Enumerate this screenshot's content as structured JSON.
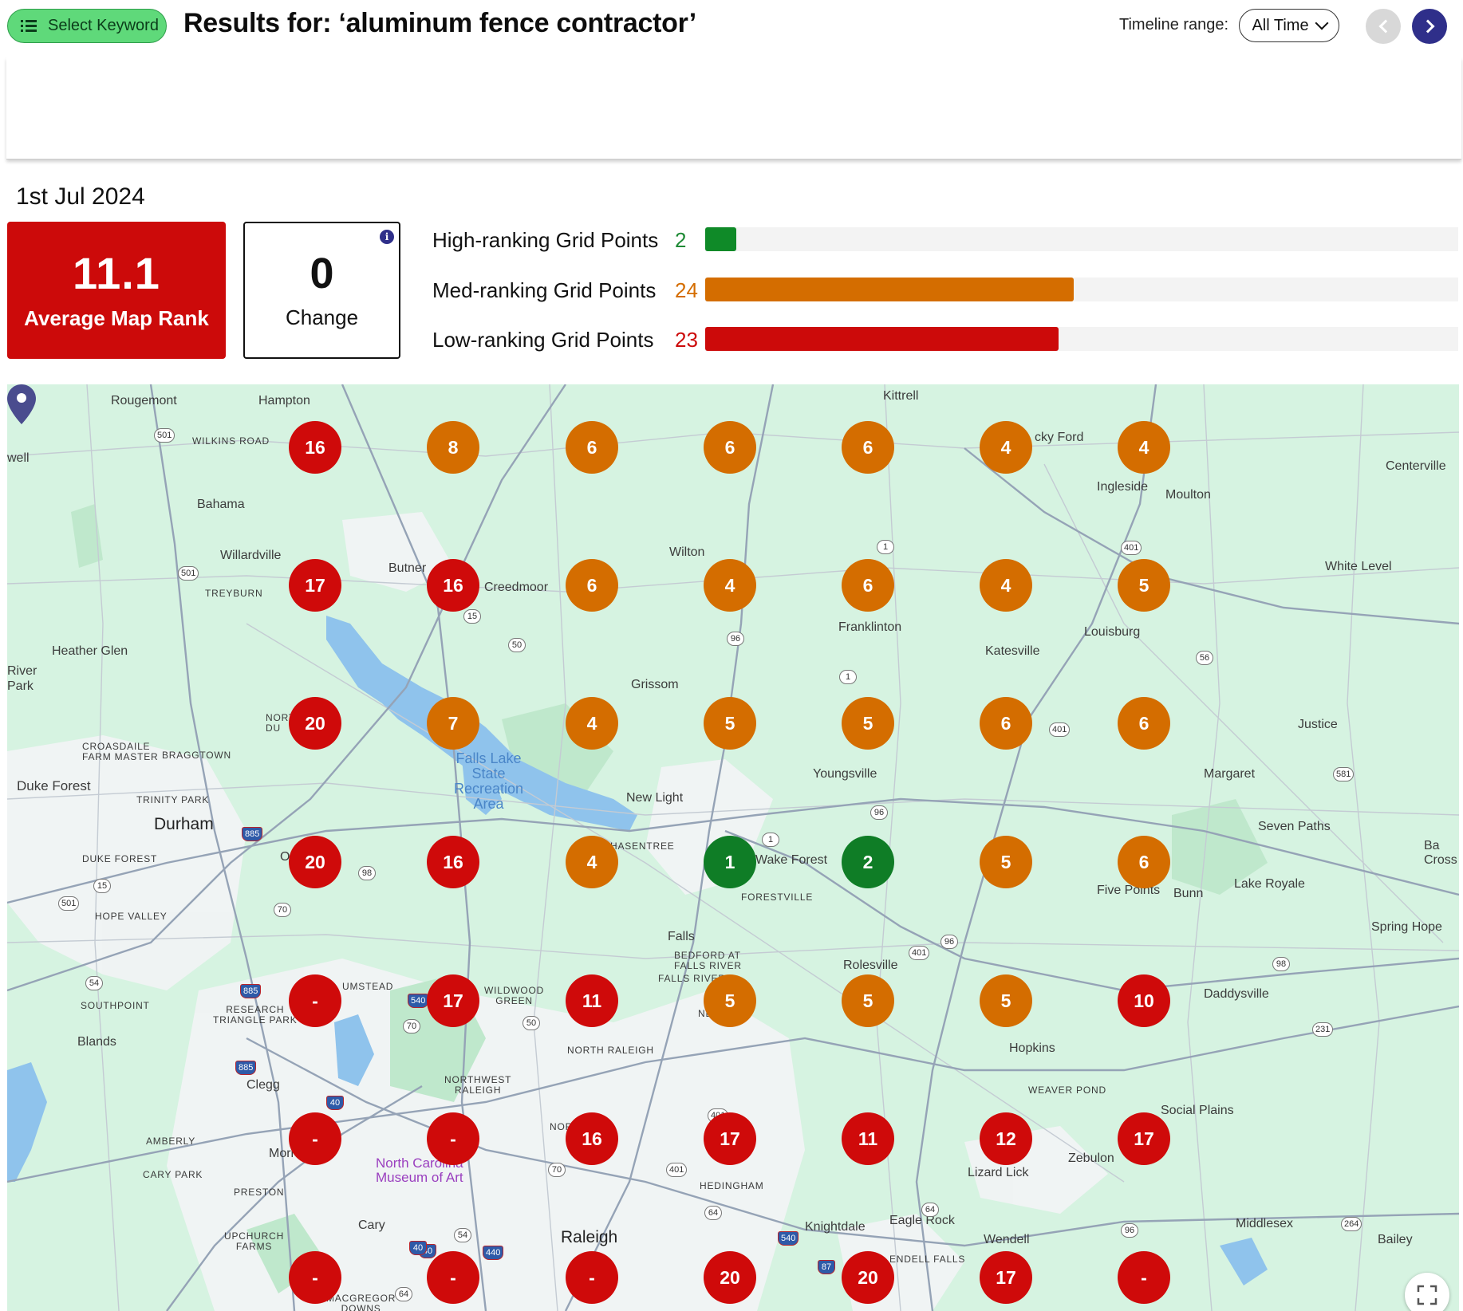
{
  "header": {
    "select_keyword_label": "Select Keyword",
    "title": "Results for: ‘aluminum fence contractor’",
    "timeline_label": "Timeline range:",
    "timeline_value": "All Time"
  },
  "summary": {
    "date": "1st Jul 2024",
    "average_rank_value": "11.1",
    "average_rank_label": "Average Map Rank",
    "change_value": "0",
    "change_label": "Change",
    "info_glyph": "i"
  },
  "ranking_bars": [
    {
      "label": "High-ranking Grid Points",
      "count": "2",
      "total": 49,
      "color": "#0f8a28"
    },
    {
      "label": "Med-ranking Grid Points",
      "count": "24",
      "total": 49,
      "color": "#d46d00"
    },
    {
      "label": "Low-ranking Grid Points",
      "count": "23",
      "total": 49,
      "color": "#cc0a0a"
    }
  ],
  "colors": {
    "red": "#cf0a0a",
    "orange": "#d46d00",
    "green": "#0f7d26",
    "accent": "#2f2f8a"
  },
  "grid": {
    "rows": [
      [
        "16",
        "8",
        "6",
        "6",
        "6",
        "4",
        "4"
      ],
      [
        "17",
        "16",
        "6",
        "4",
        "6",
        "4",
        "5"
      ],
      [
        "20",
        "7",
        "4",
        "5",
        "5",
        "6",
        "6"
      ],
      [
        "20",
        "16",
        "4",
        "1",
        "2",
        "5",
        "6"
      ],
      [
        "-",
        "17",
        "11",
        "5",
        "5",
        "5",
        "10"
      ],
      [
        "-",
        "-",
        "16",
        "17",
        "11",
        "12",
        "17"
      ],
      [
        "-",
        "-",
        "-",
        "20",
        "20",
        "17",
        "-"
      ]
    ]
  },
  "map_places": {
    "rougemont": "Rougemont",
    "hampton": "Hampton",
    "wilkins_road": "WILKINS ROAD",
    "well": "well",
    "bahama": "Bahama",
    "willardville": "Willardville",
    "treyburn": "TREYBURN",
    "butner": "Butner",
    "creedmoor": "Creedmoor",
    "heather_glen": "Heather Glen",
    "river_park": "River\nPark",
    "wilton": "Wilton",
    "kittrell": "Kittrell",
    "cky_ford": "cky Ford",
    "ingleside": "Ingleside",
    "moulton": "Moulton",
    "centerville": "Centerville",
    "white_level": "White Level",
    "franklinton": "Franklinton",
    "katesville": "Katesville",
    "louisburg": "Louisburg",
    "grissom": "Grissom",
    "justice": "Justice",
    "margaret": "Margaret",
    "youngsville": "Youngsville",
    "croasdaile": "CROASDAILE\nFARM MASTER",
    "braggtown": "BRAGGTOWN",
    "duke_forest": "Duke Forest",
    "trinity_park": "TRINITY PARK",
    "durham": "Durham",
    "duke_forest_caps": "DUKE FOREST",
    "falls_lake": "Falls Lake\nState\nRecreation\nArea",
    "new_light": "New Light",
    "hasentree": "HASENTREE",
    "wake_forest": "Wake Forest",
    "forestville": "FORESTVILLE",
    "seven_paths": "Seven Paths",
    "ba_cross": "Ba\nCross",
    "five_points": "Five Points",
    "bunn": "Bunn",
    "lake_royale": "Lake Royale",
    "hope_valley": "HOPE VALLEY",
    "falls": "Falls",
    "bedford": "BEDFORD AT\nFALLS RIVER",
    "falls_river": "FALLS RIVER",
    "rolesville": "Rolesville",
    "spring_hope": "Spring Hope",
    "southpoint": "SOUTHPOINT",
    "umstead": "UMSTEAD",
    "research": "RESEARCH\nTRIANGLE PARK",
    "wildwood": "WILDWOOD\nGREEN",
    "daddysville": "Daddysville",
    "blands": "Blands",
    "north_raleigh": "NORTH RALEIGH",
    "hopkins": "Hopkins",
    "clegg": "Clegg",
    "northwest_raleigh": "NORTHWEST\nRALEIGH",
    "weaver_pond": "WEAVER POND",
    "social_plains": "Social Plains",
    "amberly": "AMBERLY",
    "morri": "Morri",
    "ncma": "North Carolina\nMuseum of Art",
    "nor": "NOR",
    "zebulon": "Zebulon",
    "lizard_lick": "Lizard Lick",
    "cary_park": "CARY PARK",
    "preston": "PRESTON",
    "hedingham": "HEDINGHAM",
    "eagle_rock": "Eagle Rock",
    "middlesex": "Middlesex",
    "knightdale": "Knightdale",
    "cary": "Cary",
    "upchurch": "UPCHURCH\nFARMS",
    "raleigh": "Raleigh",
    "wendell": "Wendell",
    "bailey": "Bailey",
    "macgregor": "MACGREGOR\nDOWNS",
    "endell_falls": "ENDELL FALLS",
    "nort_du": "NORT\nDU",
    "oa": "Oa",
    "ne": "NE"
  },
  "route_shields": [
    "501",
    "501",
    "15",
    "50",
    "96",
    "1",
    "1",
    "401",
    "56",
    "401",
    "581",
    "96",
    "98",
    "885",
    "1",
    "501",
    "15",
    "70",
    "96",
    "401",
    "98",
    "54",
    "885",
    "540",
    "70",
    "50",
    "231",
    "885",
    "40",
    "401",
    "70",
    "401",
    "64",
    "64",
    "540",
    "54",
    "40",
    "440",
    "264",
    "96",
    "40",
    "87",
    "64"
  ]
}
